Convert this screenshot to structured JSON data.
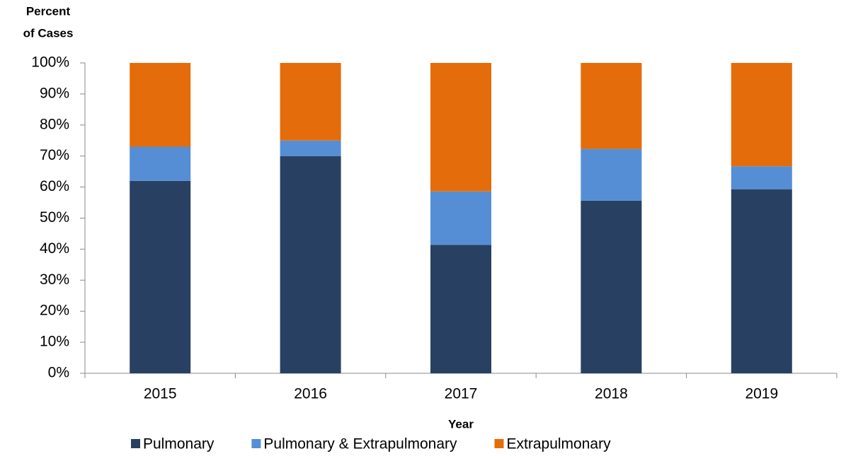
{
  "chart_data": {
    "type": "stacked_bar",
    "y_label": [
      "Percent",
      "of Cases"
    ],
    "x_label": "Year",
    "categories": [
      "2015",
      "2016",
      "2017",
      "2018",
      "2019"
    ],
    "series": [
      {
        "name": "Pulmonary",
        "color": "#284163",
        "values": [
          62,
          70,
          41.4,
          55.6,
          59.3
        ]
      },
      {
        "name": "Pulmonary & Extrapulmonary",
        "color": "#558ed5",
        "values": [
          11,
          5,
          17.2,
          16.7,
          7.4
        ]
      },
      {
        "name": "Extrapulmonary",
        "color": "#e46c0a",
        "values": [
          27,
          25,
          41.4,
          27.7,
          33.3
        ]
      }
    ],
    "ylim": [
      0,
      100
    ],
    "yticks": [
      {
        "value": 0,
        "label": "0%"
      },
      {
        "value": 10,
        "label": "10%"
      },
      {
        "value": 20,
        "label": "20%"
      },
      {
        "value": 30,
        "label": "30%"
      },
      {
        "value": 40,
        "label": "40%"
      },
      {
        "value": 50,
        "label": "50%"
      },
      {
        "value": 60,
        "label": "60%"
      },
      {
        "value": 70,
        "label": "70%"
      },
      {
        "value": 80,
        "label": "80%"
      },
      {
        "value": 90,
        "label": "90%"
      },
      {
        "value": 100,
        "label": "100%"
      }
    ],
    "legend": "bottom"
  }
}
